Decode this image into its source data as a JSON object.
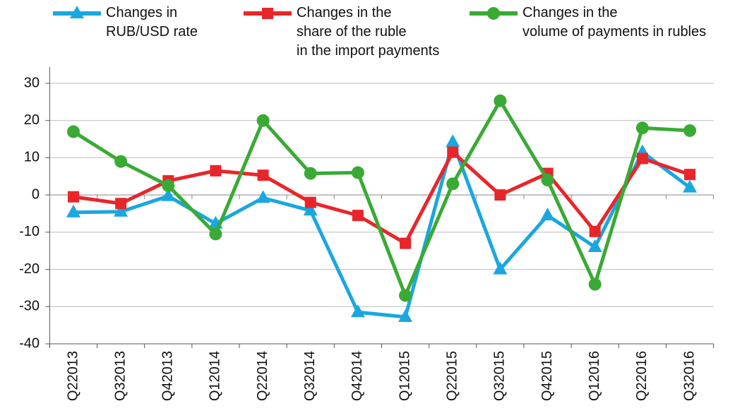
{
  "chart_data": {
    "type": "line",
    "categories": [
      "Q22013",
      "Q32013",
      "Q42013",
      "Q12014",
      "Q22014",
      "Q32014",
      "Q42014",
      "Q12015",
      "Q22015",
      "Q32015",
      "Q42015",
      "Q12016",
      "Q22016",
      "Q32016"
    ],
    "series": [
      {
        "name": "Changes in\nRUB/USD rate",
        "color": "#1aa7e0",
        "marker": "triangle",
        "values": [
          -4.7,
          -4.5,
          -0.3,
          -7.7,
          -0.8,
          -4.2,
          -31.5,
          -32.8,
          14.2,
          -20,
          -5.5,
          -14,
          11.5,
          2
        ]
      },
      {
        "name": "Changes in the\nshare of the ruble\nin the import payments",
        "color": "#e8262a",
        "marker": "square",
        "values": [
          -0.5,
          -2.3,
          3.8,
          6.5,
          5.3,
          -2,
          -5.5,
          -13,
          11.5,
          0,
          5.8,
          -9.8,
          9.8,
          5.5
        ]
      },
      {
        "name": "Changes in the\nvolume of payments in rubles",
        "color": "#3aaa35",
        "marker": "circle",
        "values": [
          17,
          9,
          2.5,
          -10.5,
          20,
          5.8,
          6,
          -27,
          3,
          25.3,
          4,
          -24,
          18,
          17.3
        ]
      }
    ],
    "ylim": [
      -40,
      30
    ],
    "yticks": [
      -40,
      -30,
      -20,
      -10,
      0,
      10,
      20,
      30
    ],
    "grid": true
  }
}
